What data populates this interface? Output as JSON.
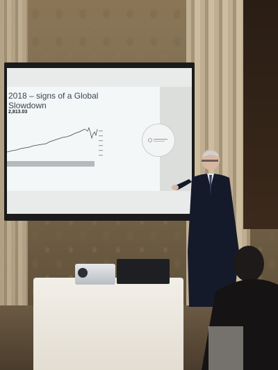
{
  "slide": {
    "title": "2018 – signs of a Global Slowdown",
    "index_value": "2,813.03"
  },
  "colors": {
    "slide_background": "#f4f7f8",
    "chart_line": "#3c3c3c",
    "wall": "#7c6a4e"
  }
}
